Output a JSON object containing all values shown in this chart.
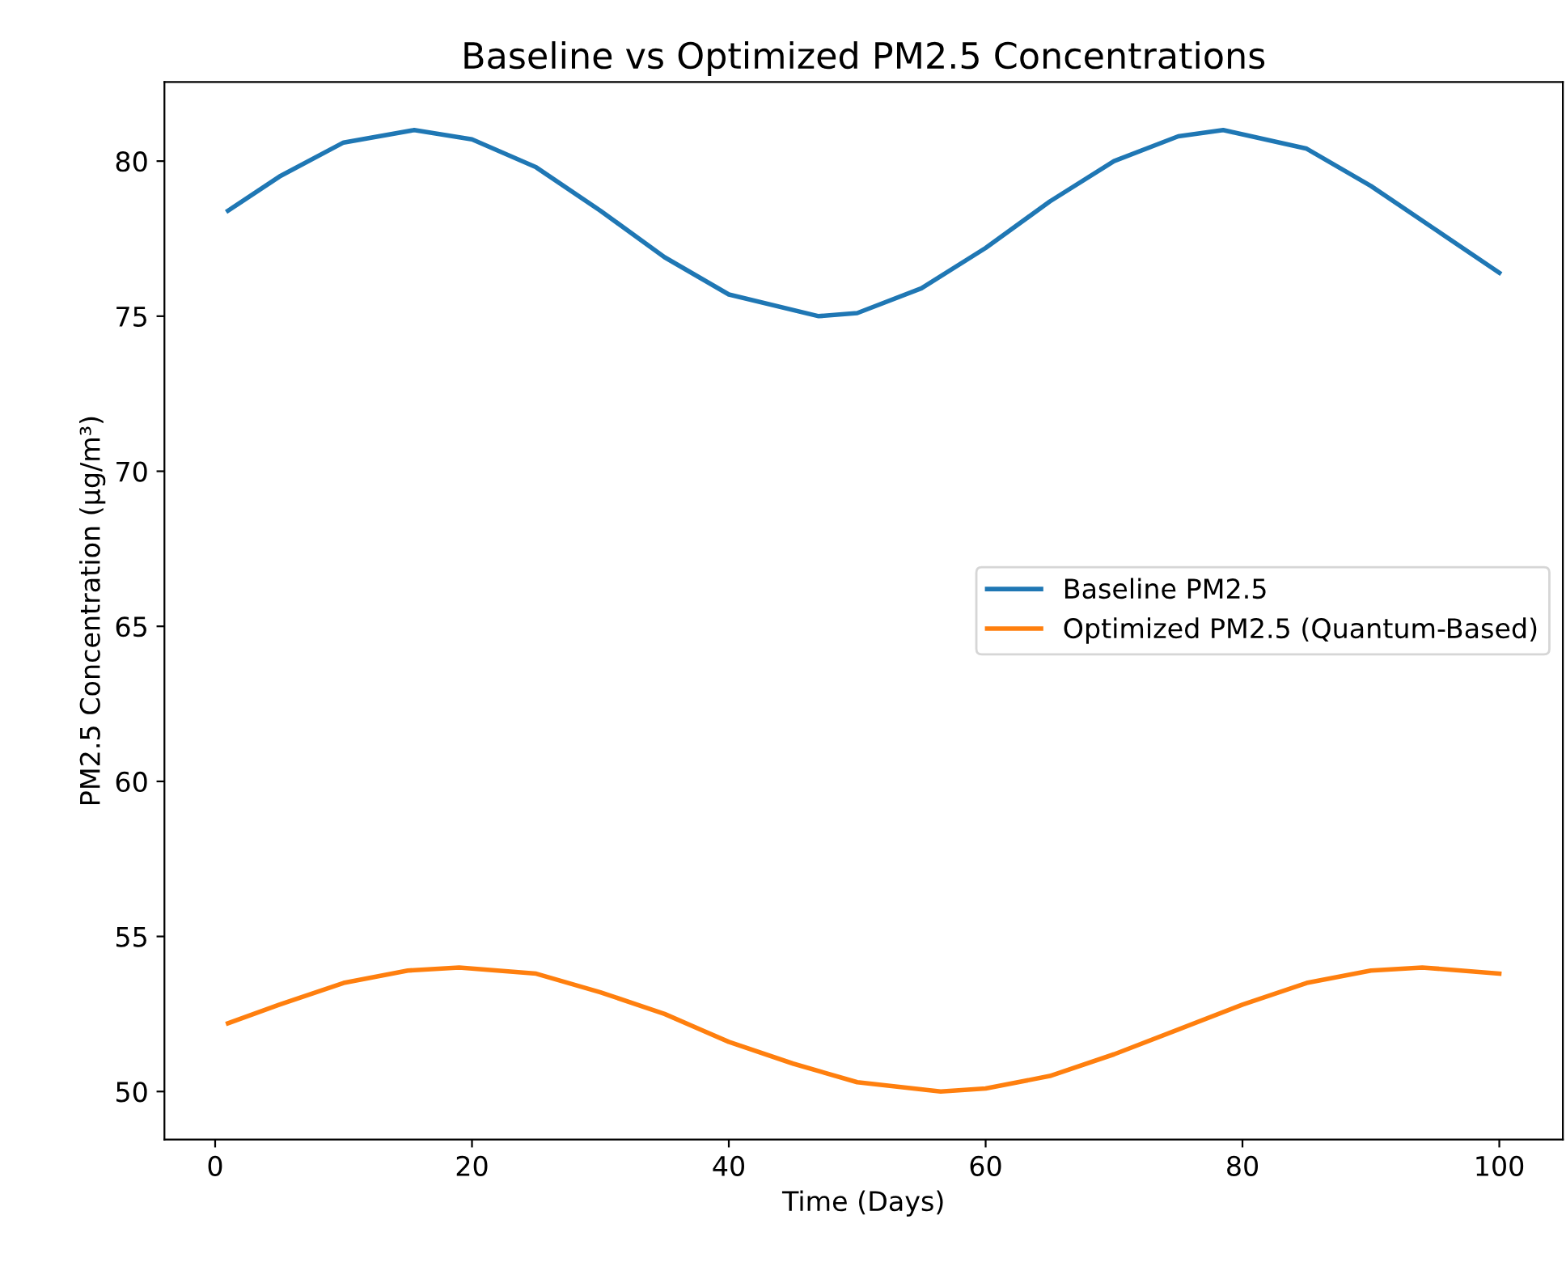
{
  "chart_data": {
    "type": "line",
    "title": "Baseline vs Optimized PM2.5 Concentrations",
    "xlabel": "Time (Days)",
    "ylabel": "PM2.5 Concentration (µg/m³)",
    "series": [
      {
        "name": "Baseline PM2.5",
        "color": "#1f77b4",
        "x": [
          1,
          5,
          10,
          15.5,
          20,
          25,
          30,
          35,
          40,
          47,
          50,
          55,
          60,
          65,
          70,
          75,
          78.5,
          85,
          90,
          95,
          100
        ],
        "values": [
          78.4,
          79.5,
          80.6,
          81,
          80.7,
          79.8,
          78.4,
          76.9,
          75.7,
          75,
          75.1,
          75.9,
          77.2,
          78.7,
          80,
          80.8,
          81,
          80.4,
          79.2,
          77.8,
          76.4
        ]
      },
      {
        "name": "Optimized PM2.5 (Quantum-Based)",
        "color": "#ff7f0e",
        "x": [
          1,
          5,
          10,
          15,
          19,
          25,
          30,
          35,
          40,
          45,
          50,
          56.5,
          60,
          65,
          70,
          75,
          80,
          85,
          90,
          94,
          100
        ],
        "values": [
          52.2,
          52.8,
          53.5,
          53.9,
          54,
          53.8,
          53.2,
          52.5,
          51.6,
          50.9,
          50.3,
          50,
          50.1,
          50.5,
          51.2,
          52,
          52.8,
          53.5,
          53.9,
          54,
          53.8
        ]
      }
    ],
    "xlim": [
      -3.95,
      104.95
    ],
    "ylim": [
      48.45,
      82.55
    ],
    "xticks": [
      0,
      20,
      40,
      60,
      80,
      100
    ],
    "yticks": [
      50,
      55,
      60,
      65,
      70,
      75,
      80
    ],
    "legend": "center right",
    "grid": false,
    "line_style": "solid",
    "marker": "none"
  }
}
